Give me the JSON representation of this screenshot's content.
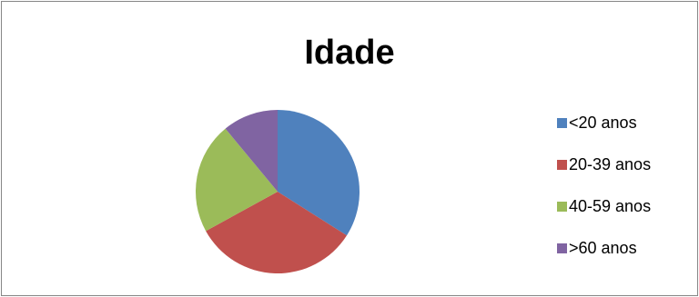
{
  "chart_data": {
    "type": "pie",
    "title": "Idade",
    "categories": [
      "<20 anos",
      "20-39 anos",
      "40-59 anos",
      ">60 anos"
    ],
    "values": [
      34,
      33,
      22,
      11
    ],
    "colors": [
      "#4F81BD",
      "#C0504D",
      "#9BBB59",
      "#8064A2"
    ],
    "legend_position": "right"
  }
}
